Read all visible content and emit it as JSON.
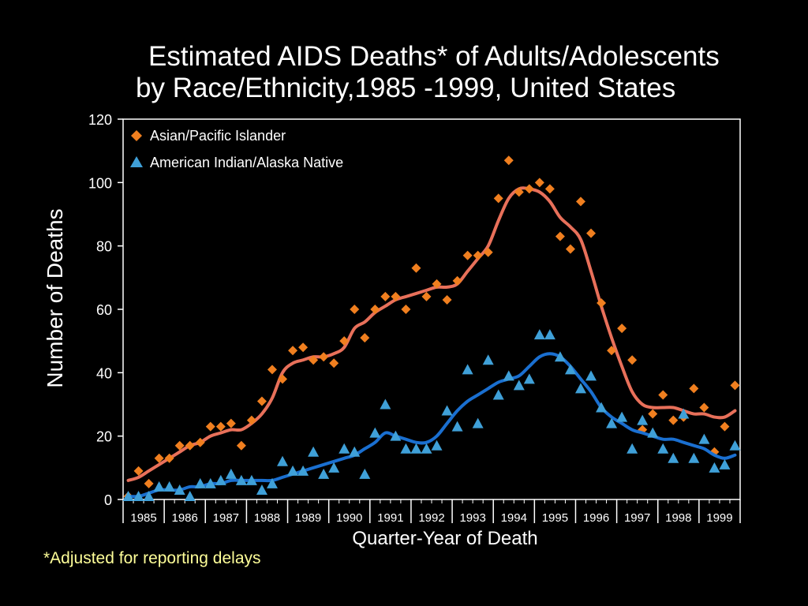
{
  "chart_data": {
    "type": "scatter",
    "title_line1": "Estimated AIDS Deaths* of Adults/Adolescents",
    "title_line2": "by Race/Ethnicity,1985 -1999, United States",
    "xlabel": "Quarter-Year of Death",
    "ylabel": "Number of Deaths",
    "footnote": "*Adjusted for reporting delays",
    "ylim": [
      0,
      120
    ],
    "yticks": [
      "0",
      "20",
      "40",
      "60",
      "80",
      "100",
      "120"
    ],
    "x_categories": [
      "1985",
      "1986",
      "1987",
      "1988",
      "1989",
      "1990",
      "1991",
      "1992",
      "1993",
      "1994",
      "1995",
      "1996",
      "1997",
      "1998",
      "1999"
    ],
    "legend_position": "top-left",
    "series": [
      {
        "name": "Asian/Pacific Islander",
        "marker": "diamond",
        "color": "#f07f1f",
        "smooth_color": "#e8705a",
        "points": [
          1,
          9,
          5,
          13,
          13,
          17,
          17,
          18,
          23,
          23,
          24,
          17,
          25,
          31,
          41,
          38,
          47,
          48,
          44,
          45,
          43,
          50,
          60,
          51,
          60,
          64,
          64,
          60,
          73,
          64,
          68,
          63,
          69,
          77,
          77,
          78,
          95,
          107,
          97,
          98,
          100,
          98,
          83,
          79,
          94,
          84,
          62,
          47,
          54,
          44,
          22,
          27,
          33,
          25,
          26,
          35,
          29,
          15,
          23,
          36
        ],
        "smooth": [
          6,
          7,
          9,
          11,
          13,
          15,
          17,
          18,
          20,
          21,
          22,
          22,
          24,
          27,
          32,
          40,
          43,
          44,
          45,
          45,
          46,
          48,
          54,
          56,
          59,
          61,
          63,
          64,
          65,
          66,
          67,
          67,
          68,
          72,
          76,
          80,
          88,
          95,
          98,
          98,
          97,
          94,
          89,
          86,
          82,
          72,
          61,
          51,
          42,
          34,
          30,
          29,
          29,
          29,
          28,
          27,
          27,
          26,
          26,
          28
        ]
      },
      {
        "name": "American Indian/Alaska Native",
        "marker": "triangle",
        "color": "#3fa0d8",
        "smooth_color": "#1a6fd0",
        "points": [
          1,
          1,
          1,
          4,
          4,
          3,
          1,
          5,
          5,
          6,
          8,
          6,
          6,
          3,
          5,
          12,
          9,
          9,
          15,
          8,
          10,
          16,
          15,
          8,
          21,
          30,
          20,
          16,
          16,
          16,
          17,
          28,
          23,
          41,
          24,
          44,
          33,
          39,
          36,
          38,
          52,
          52,
          45,
          41,
          35,
          39,
          29,
          24,
          26,
          16,
          25,
          21,
          16,
          13,
          27,
          13,
          19,
          10,
          11,
          17
        ],
        "smooth": [
          1,
          1,
          2,
          3,
          3,
          3,
          4,
          4,
          5,
          5,
          6,
          6,
          6,
          6,
          6,
          7,
          8,
          9,
          10,
          11,
          12,
          13,
          14,
          16,
          18,
          21,
          20,
          19,
          18,
          18,
          20,
          24,
          28,
          31,
          33,
          35,
          37,
          38,
          39,
          42,
          45,
          46,
          45,
          42,
          38,
          34,
          29,
          26,
          24,
          22,
          21,
          20,
          19,
          19,
          18,
          17,
          16,
          14,
          13,
          14
        ]
      }
    ]
  }
}
